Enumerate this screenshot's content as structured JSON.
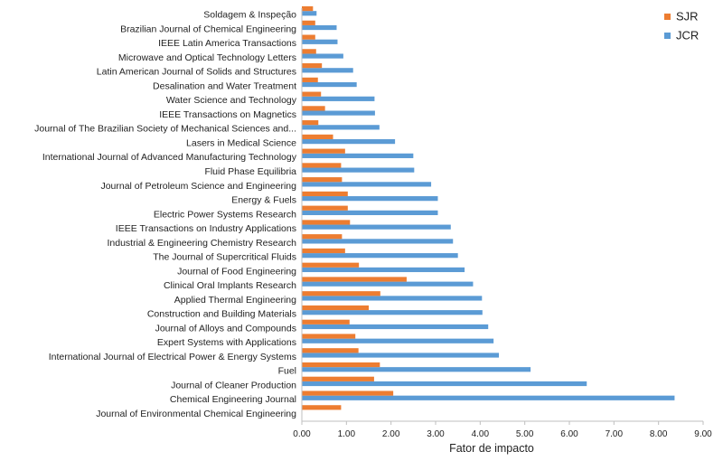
{
  "chart_data": {
    "type": "bar",
    "orientation": "horizontal",
    "title": "",
    "xlabel": "Fator de impacto",
    "ylabel": "",
    "xlim": [
      0,
      9
    ],
    "x_ticks": [
      "0.00",
      "1.00",
      "2.00",
      "3.00",
      "4.00",
      "5.00",
      "6.00",
      "7.00",
      "8.00",
      "9.00"
    ],
    "grid": false,
    "legend_position": "top-right",
    "categories": [
      "Soldagem & Inspeção",
      "Brazilian Journal of Chemical Engineering",
      "IEEE Latin America Transactions",
      "Microwave and Optical Technology Letters",
      "Latin American Journal of Solids and Structures",
      "Desalination and Water Treatment",
      "Water Science and Technology",
      "IEEE Transactions on Magnetics",
      "Journal of The Brazilian Society of Mechanical Sciences and...",
      "Lasers in Medical Science",
      "International Journal of Advanced Manufacturing Technology",
      "Fluid Phase Equilibria",
      "Journal of Petroleum Science and Engineering",
      "Energy & Fuels",
      "Electric Power Systems Research",
      "IEEE Transactions on Industry Applications",
      "Industrial & Engineering Chemistry Research",
      "The Journal of Supercritical Fluids",
      "Journal of Food Engineering",
      "Clinical Oral Implants Research",
      "Applied Thermal Engineering",
      "Construction and Building Materials",
      "Journal of Alloys and Compounds",
      "Expert Systems with Applications",
      "International Journal of Electrical Power & Energy Systems",
      "Fuel",
      "Journal of Cleaner Production",
      "Chemical Engineering Journal",
      "Journal of Environmental Chemical Engineering"
    ],
    "series": [
      {
        "name": "SJR",
        "color": "#ED7D31",
        "values": [
          0.25,
          0.3,
          0.3,
          0.32,
          0.45,
          0.36,
          0.43,
          0.52,
          0.37,
          0.7,
          0.97,
          0.88,
          0.9,
          1.03,
          1.03,
          1.08,
          0.9,
          0.97,
          1.28,
          2.35,
          1.76,
          1.5,
          1.07,
          1.2,
          1.27,
          1.75,
          1.62,
          2.05,
          0.88
        ]
      },
      {
        "name": "JCR",
        "color": "#5B9BD5",
        "values": [
          0.33,
          0.78,
          0.8,
          0.93,
          1.15,
          1.23,
          1.63,
          1.64,
          1.74,
          2.09,
          2.5,
          2.52,
          2.9,
          3.05,
          3.05,
          3.34,
          3.39,
          3.5,
          3.65,
          3.84,
          4.04,
          4.05,
          4.18,
          4.3,
          4.42,
          5.13,
          6.39,
          8.36,
          null
        ]
      }
    ]
  }
}
